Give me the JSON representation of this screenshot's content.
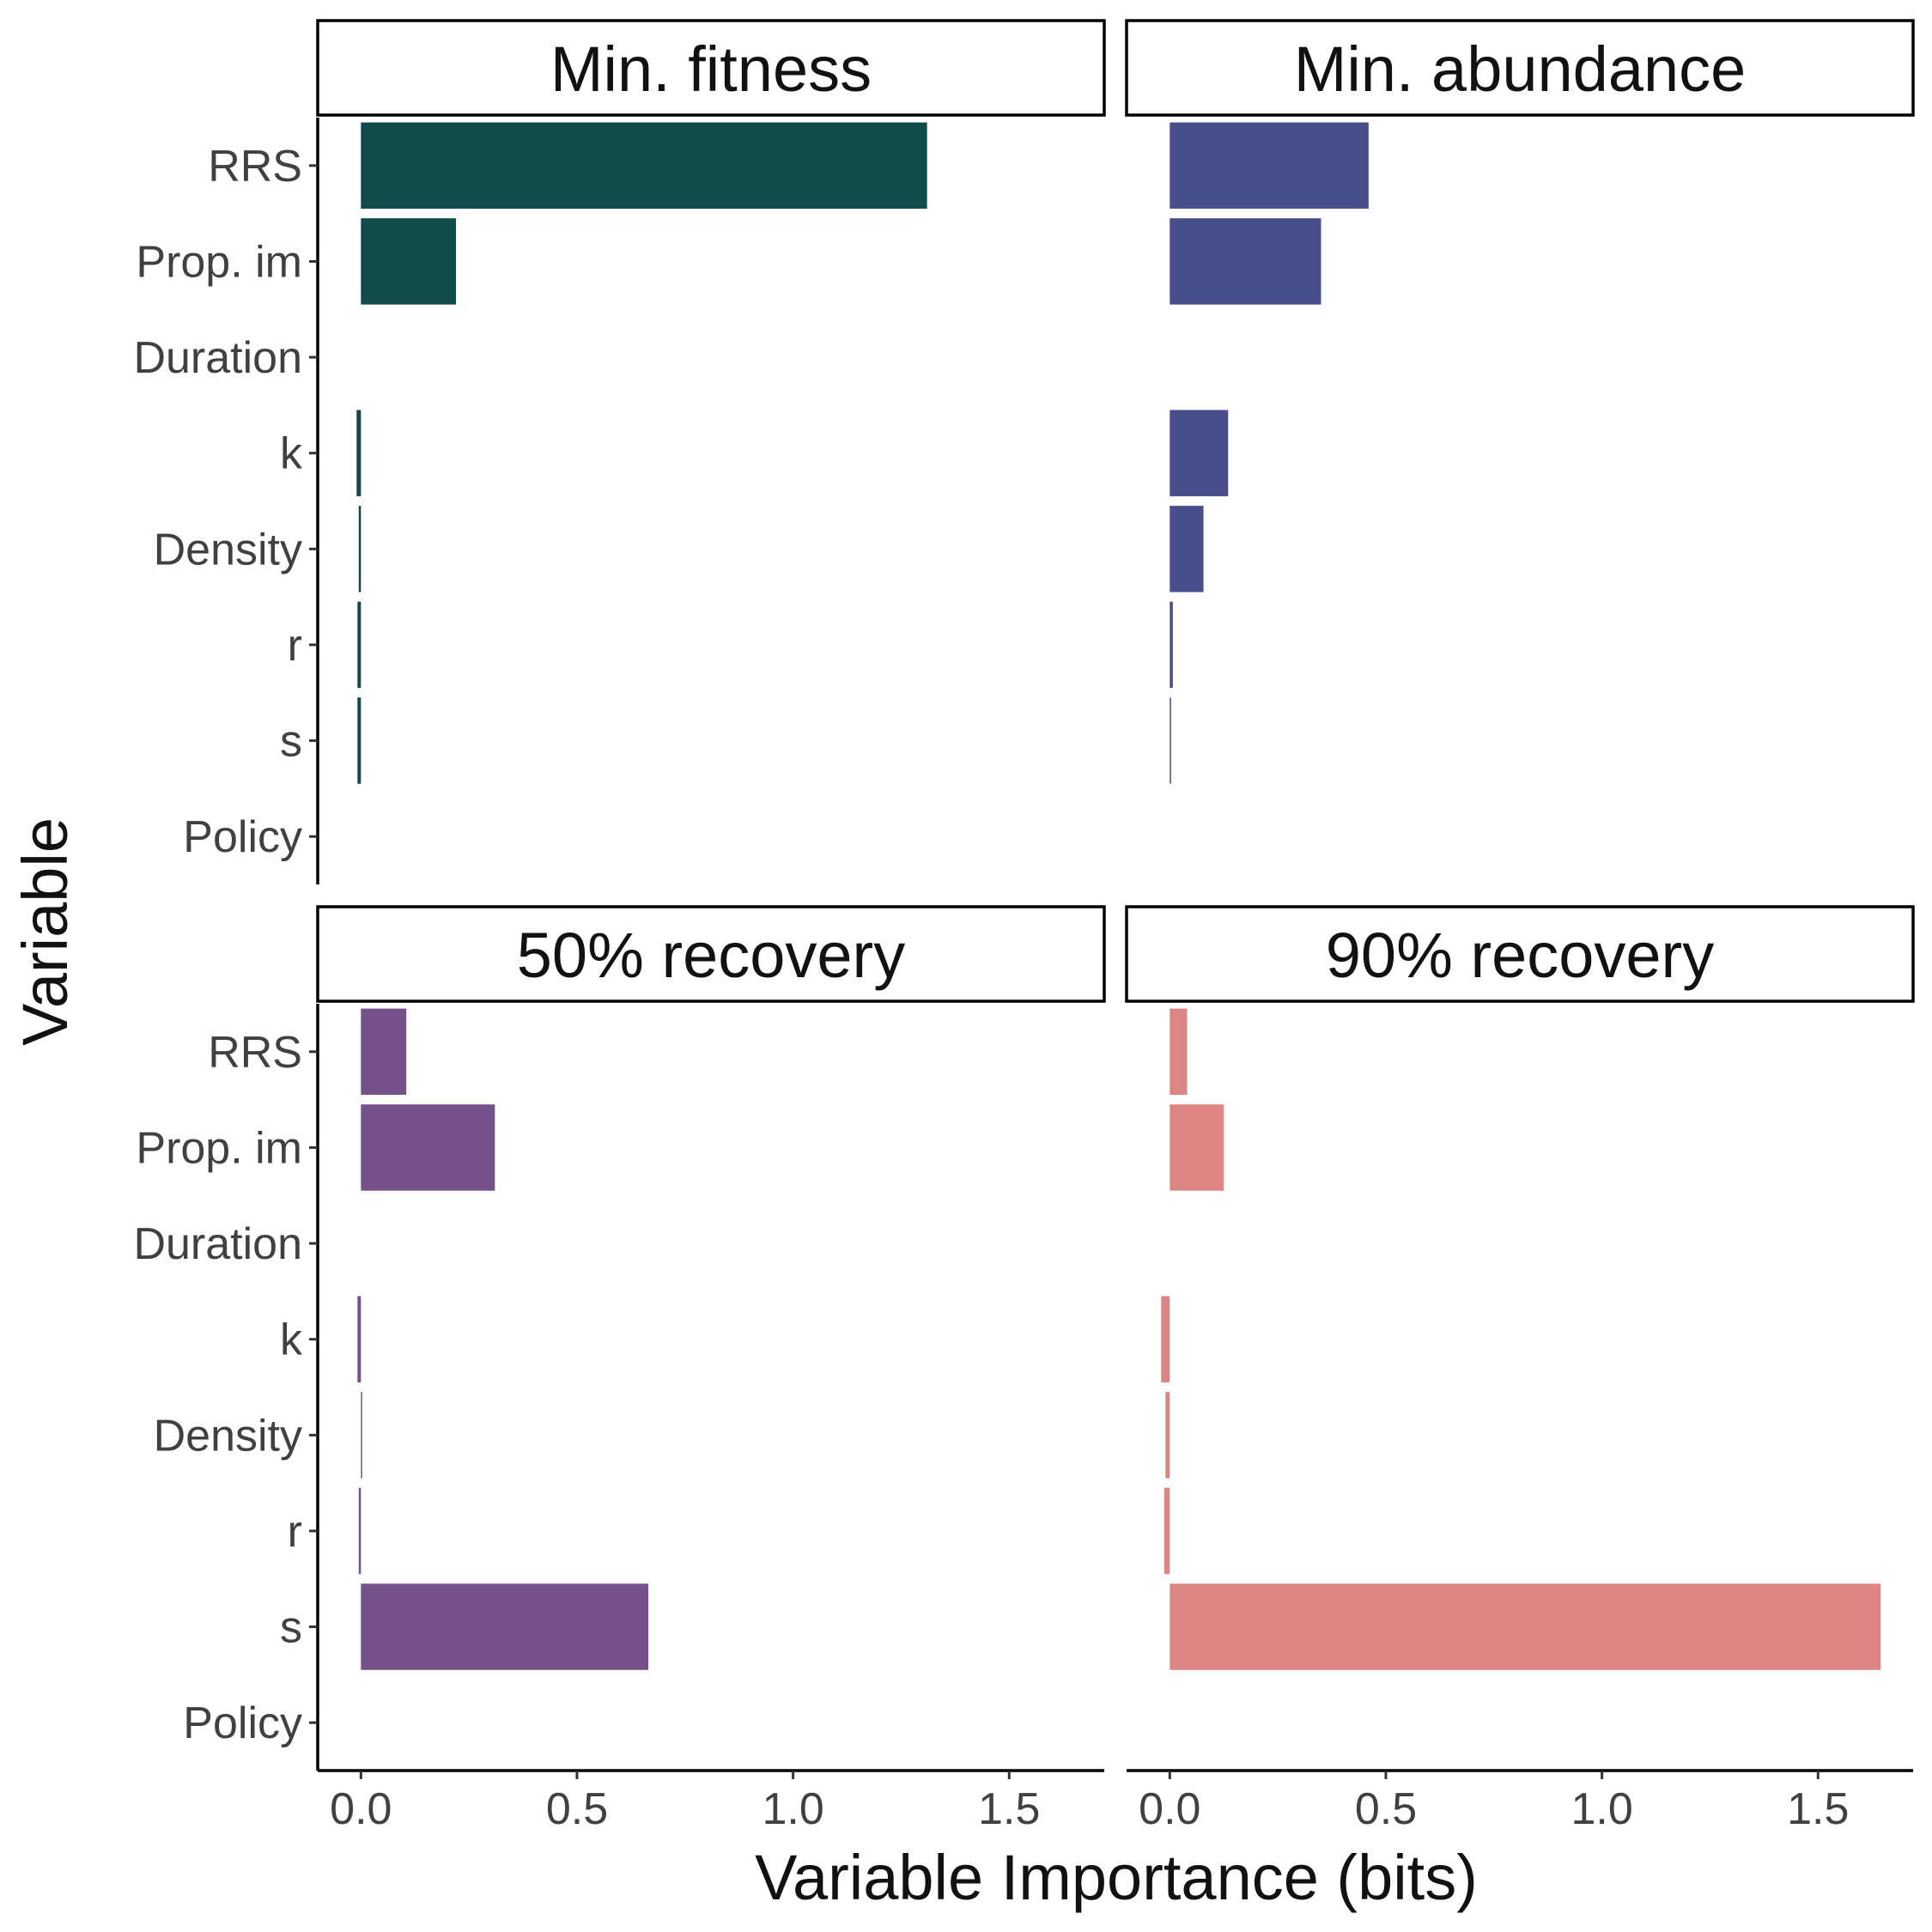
{
  "chart_data": {
    "type": "bar",
    "orientation": "horizontal",
    "xlabel": "Variable Importance (bits)",
    "ylabel": "Variable",
    "categories": [
      "RRS",
      "Prop. im",
      "Duration",
      "k",
      "Density",
      "r",
      "s",
      "Policy"
    ],
    "x_ticks": [
      0.0,
      0.5,
      1.0,
      1.5
    ],
    "x_tick_labels": [
      "0.0",
      "0.5",
      "1.0",
      "1.5"
    ],
    "xlim": [
      -0.1,
      1.72
    ],
    "grid": false,
    "legend": "none",
    "panels": [
      {
        "title": "Min. fitness",
        "color": "#0e4b49",
        "values": [
          1.31,
          0.22,
          0.0,
          -0.01,
          -0.005,
          -0.008,
          -0.008,
          0.0
        ]
      },
      {
        "title": "Min. abundance",
        "color": "#484e8a",
        "values": [
          0.46,
          0.35,
          0.0,
          0.135,
          0.078,
          0.007,
          0.003,
          0.0
        ]
      },
      {
        "title": "50% recovery",
        "color": "#76528b",
        "values": [
          0.105,
          0.31,
          0.0,
          -0.008,
          0.002,
          -0.005,
          0.665,
          0.0
        ]
      },
      {
        "title": "90% recovery",
        "color": "#dd8584",
        "values": [
          0.04,
          0.125,
          0.0,
          -0.02,
          -0.01,
          -0.013,
          1.645,
          0.0
        ]
      }
    ]
  }
}
